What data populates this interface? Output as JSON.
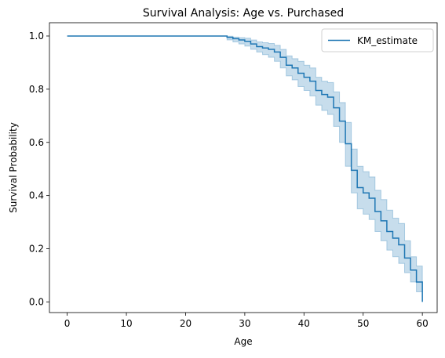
{
  "chart_data": {
    "type": "line",
    "title": "Survival Analysis: Age vs. Purchased",
    "xlabel": "Age",
    "ylabel": "Survival Probability",
    "xlim": [
      -3,
      62.5
    ],
    "ylim": [
      -0.04,
      1.05
    ],
    "xticks": [
      0,
      10,
      20,
      30,
      40,
      50,
      60
    ],
    "xtick_labels": [
      "0",
      "10",
      "20",
      "30",
      "40",
      "50",
      "60"
    ],
    "yticks": [
      0.0,
      0.2,
      0.4,
      0.6,
      0.8,
      1.0
    ],
    "ytick_labels": [
      "0.0",
      "0.2",
      "0.4",
      "0.6",
      "0.8",
      "1.0"
    ],
    "grid": false,
    "legend_position": "top-right",
    "series": [
      {
        "name": "KM_estimate",
        "color": "#1f77b4",
        "band_color": "#1f77b4",
        "drawstyle": "steps-post",
        "x": [
          0,
          27,
          28,
          29,
          30,
          31,
          32,
          33,
          34,
          35,
          36,
          37,
          38,
          39,
          40,
          41,
          42,
          43,
          44,
          45,
          46,
          47,
          48,
          49,
          50,
          51,
          52,
          53,
          54,
          55,
          56,
          57,
          58,
          59,
          60
        ],
        "y": [
          1.0,
          0.995,
          0.99,
          0.985,
          0.98,
          0.97,
          0.96,
          0.955,
          0.95,
          0.94,
          0.92,
          0.89,
          0.88,
          0.86,
          0.845,
          0.83,
          0.795,
          0.78,
          0.77,
          0.73,
          0.68,
          0.595,
          0.495,
          0.43,
          0.41,
          0.39,
          0.34,
          0.305,
          0.265,
          0.24,
          0.215,
          0.165,
          0.12,
          0.075,
          0.0
        ],
        "ci_lower": [
          1.0,
          0.985,
          0.978,
          0.97,
          0.962,
          0.95,
          0.94,
          0.93,
          0.92,
          0.905,
          0.88,
          0.85,
          0.835,
          0.81,
          0.795,
          0.775,
          0.74,
          0.72,
          0.705,
          0.66,
          0.6,
          0.51,
          0.41,
          0.35,
          0.33,
          0.31,
          0.265,
          0.23,
          0.195,
          0.17,
          0.145,
          0.11,
          0.075,
          0.038,
          0.0
        ],
        "ci_upper": [
          1.0,
          0.999,
          0.996,
          0.994,
          0.992,
          0.985,
          0.978,
          0.975,
          0.972,
          0.965,
          0.95,
          0.925,
          0.915,
          0.905,
          0.89,
          0.88,
          0.845,
          0.83,
          0.825,
          0.79,
          0.75,
          0.675,
          0.575,
          0.51,
          0.49,
          0.47,
          0.42,
          0.385,
          0.345,
          0.315,
          0.295,
          0.23,
          0.17,
          0.135,
          0.0
        ]
      }
    ]
  }
}
